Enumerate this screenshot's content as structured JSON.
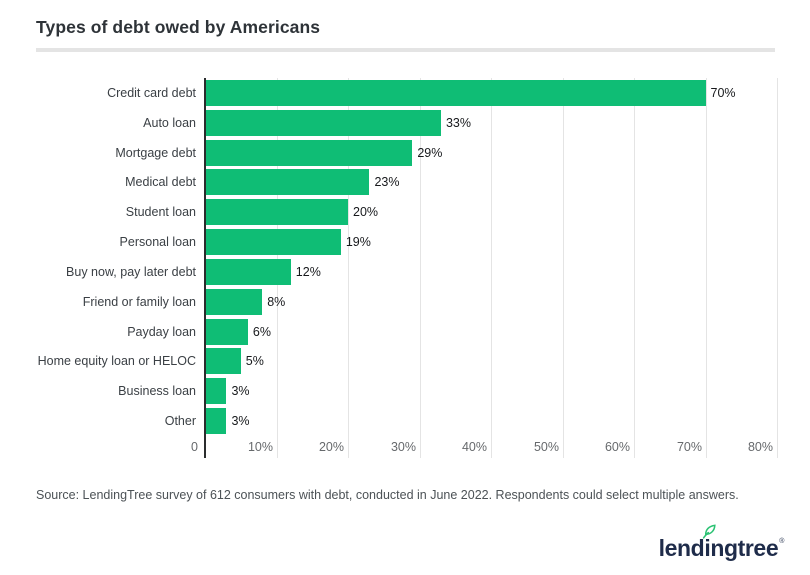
{
  "title": "Types of debt owed by Americans",
  "source_note": "Source: LendingTree survey of 612 consumers with debt, conducted in June 2022. Respondents could select multiple answers.",
  "logo": {
    "text": "lendingtree",
    "registered_mark": "®",
    "leaf_icon": "leaf-icon"
  },
  "colors": {
    "bar": "#0fbd75",
    "gridline": "#e4e4e4",
    "axis_line": "#2b2d2e",
    "title": "#2e3338",
    "category_label": "#3b4045",
    "value_label": "#17191c",
    "tick_label": "#66696c",
    "source_text": "#4c5256",
    "divider": "#e4e4e4",
    "logo_navy": "#1f2c4a",
    "logo_leaf": "#2bc273",
    "background": "#ffffff"
  },
  "chart_data": {
    "type": "bar",
    "orientation": "horizontal",
    "title": "Types of debt owed by Americans",
    "categories": [
      "Credit card debt",
      "Auto loan",
      "Mortgage debt",
      "Medical debt",
      "Student loan",
      "Personal loan",
      "Buy now, pay later debt",
      "Friend or family loan",
      "Payday loan",
      "Home equity loan or HELOC",
      "Business loan",
      "Other"
    ],
    "values": [
      70,
      33,
      29,
      23,
      20,
      19,
      12,
      8,
      6,
      5,
      3,
      3
    ],
    "value_labels": [
      "70%",
      "33%",
      "29%",
      "23%",
      "20%",
      "19%",
      "12%",
      "8%",
      "6%",
      "5%",
      "3%",
      "3%"
    ],
    "xlabel": "",
    "ylabel": "",
    "xlim": [
      0,
      80
    ],
    "x_ticks": [
      0,
      10,
      20,
      30,
      40,
      50,
      60,
      70,
      80
    ],
    "x_tick_labels": [
      "0",
      "10%",
      "20%",
      "30%",
      "40%",
      "50%",
      "60%",
      "70%",
      "80%"
    ],
    "grid": "vertical-only",
    "legend": "none",
    "bar_color": "#0fbd75"
  }
}
